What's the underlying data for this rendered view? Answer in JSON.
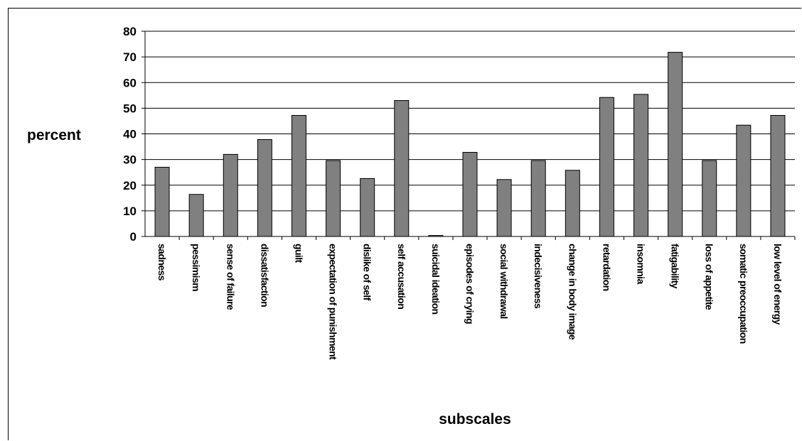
{
  "chart_data": {
    "type": "bar",
    "title": "",
    "xlabel": "subscales",
    "ylabel": "percent",
    "ylim": [
      0,
      80
    ],
    "yticks": [
      0,
      10,
      20,
      30,
      40,
      50,
      60,
      70,
      80
    ],
    "grid": true,
    "legend": "none",
    "bar_color": "#808080",
    "categories": [
      "sadness",
      "pessimism",
      "sense of failure",
      "dissatisfaction",
      "guilt",
      "expectation of punishment",
      "dislike of self",
      "self accusation",
      "suicidal ideation",
      "episodes of crying",
      "social withdrawal",
      "indecisiveness",
      "change in body image",
      "retardation",
      "insomnia",
      "fatigability",
      "loss of appetite",
      "somatic preoccupation",
      "low level of energy"
    ],
    "values": [
      27,
      16.4,
      32,
      37.8,
      47.2,
      29.6,
      22.6,
      53,
      0.4,
      32.8,
      22.2,
      29.6,
      25.8,
      54.2,
      55.4,
      71.8,
      29.6,
      43.4,
      47.2
    ]
  }
}
